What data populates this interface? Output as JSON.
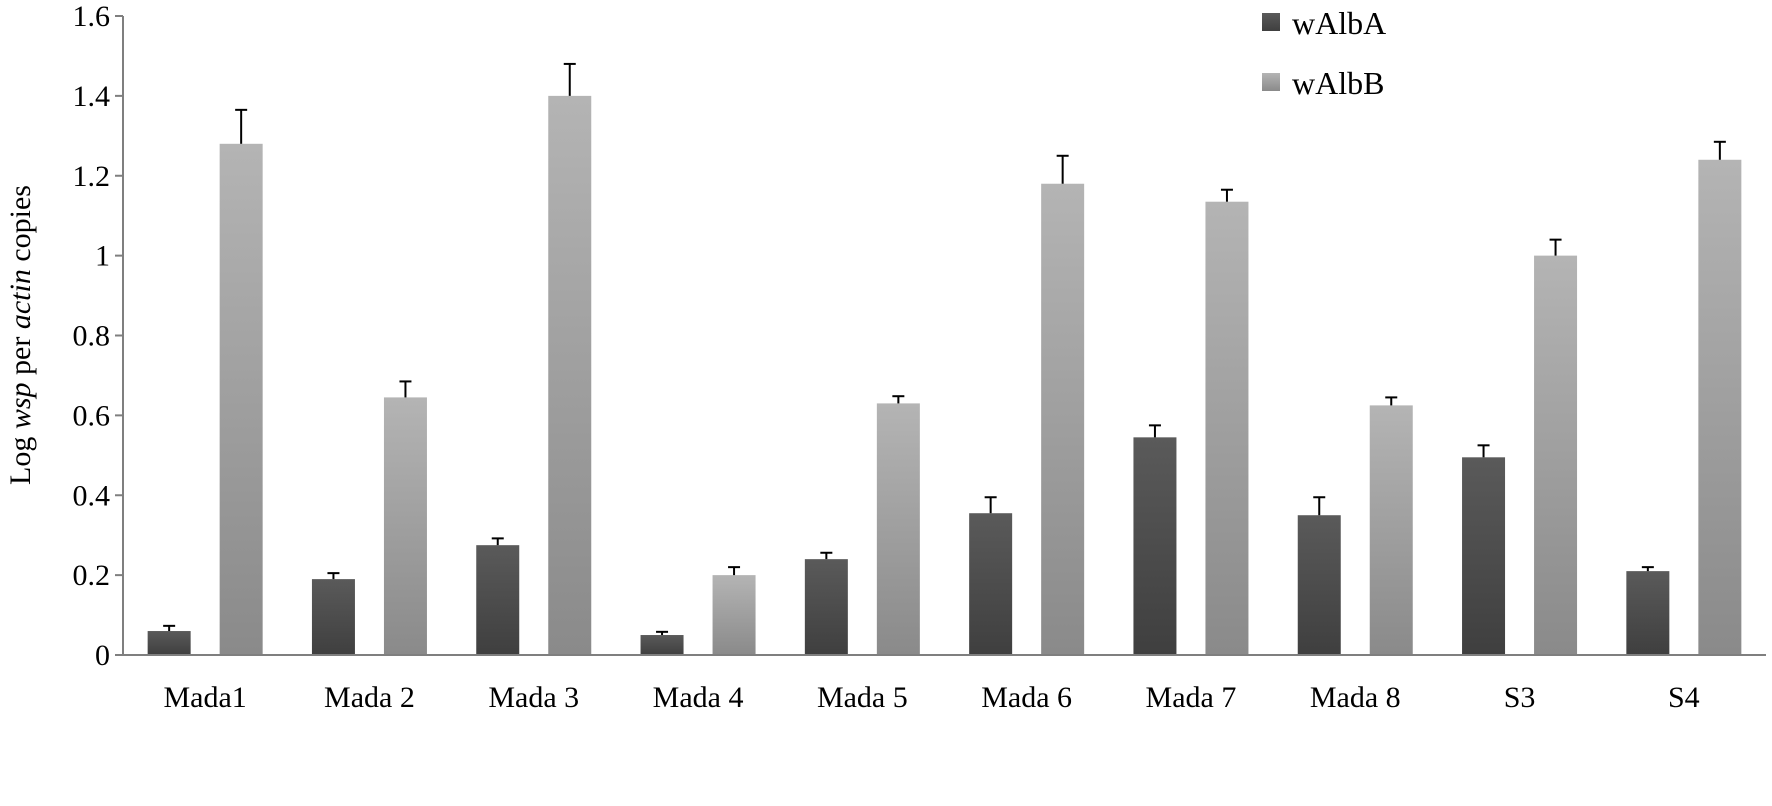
{
  "chart_data": {
    "type": "bar",
    "title": "",
    "xlabel": "",
    "ylabel": {
      "prefix": "Log ",
      "italic1": "wsp",
      "middle": " per ",
      "italic2": "actin",
      "suffix": " copies"
    },
    "ylim": [
      0,
      1.6
    ],
    "yticks": [
      "0",
      "0.2",
      "0.4",
      "0.6",
      "0.8",
      "1",
      "1.2",
      "1.4",
      "1.6"
    ],
    "ytick_values": [
      0,
      0.2,
      0.4,
      0.6,
      0.8,
      1.0,
      1.2,
      1.4,
      1.6
    ],
    "grid": false,
    "legend_position": "top-right",
    "categories": [
      "Mada1",
      "Mada 2",
      "Mada 3",
      "Mada 4",
      "Mada 5",
      "Mada 6",
      "Mada 7",
      "Mada 8",
      "S3",
      "S4"
    ],
    "series": [
      {
        "name": "wAlbA",
        "color_top": "#5a5a5a",
        "color_bottom": "#3f3f3f",
        "values": [
          0.06,
          0.19,
          0.275,
          0.05,
          0.24,
          0.355,
          0.545,
          0.35,
          0.495,
          0.21
        ],
        "errors": [
          0.013,
          0.015,
          0.017,
          0.008,
          0.016,
          0.04,
          0.03,
          0.045,
          0.03,
          0.01
        ]
      },
      {
        "name": "wAlbB",
        "color_top": "#b4b4b4",
        "color_bottom": "#8a8a8a",
        "values": [
          1.28,
          0.645,
          1.4,
          0.2,
          0.63,
          1.18,
          1.135,
          0.625,
          1.0,
          1.24
        ],
        "errors": [
          0.085,
          0.04,
          0.08,
          0.02,
          0.018,
          0.07,
          0.03,
          0.02,
          0.04,
          0.045
        ]
      }
    ]
  }
}
